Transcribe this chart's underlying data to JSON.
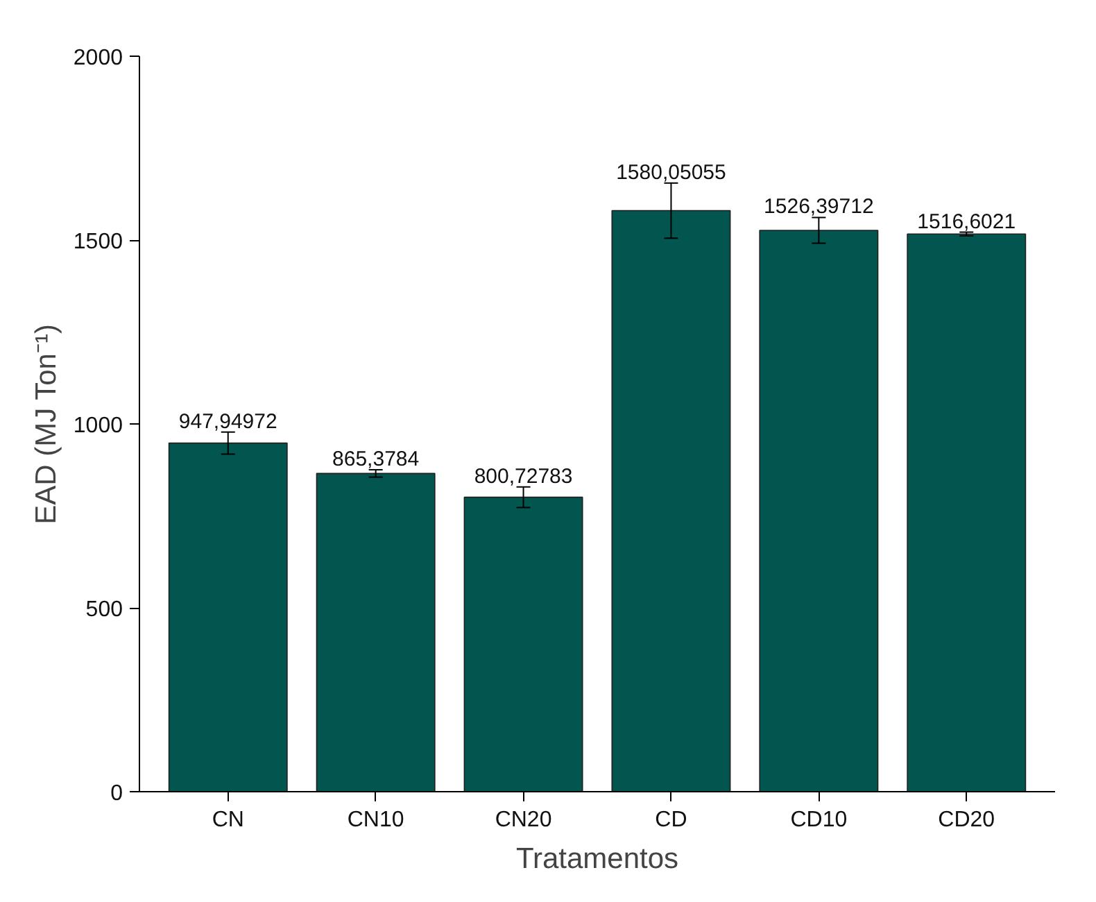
{
  "chart_data": {
    "type": "bar",
    "xlabel": "Tratamentos",
    "ylabel": "EAD (MJ Ton⁻¹)",
    "categories": [
      "CN",
      "CN10",
      "CN20",
      "CD",
      "CD10",
      "CD20"
    ],
    "values": [
      947.94972,
      865.3784,
      800.72783,
      1580.05055,
      1526.39712,
      1516.6021
    ],
    "value_labels": [
      "947,94972",
      "865,3784",
      "800,72783",
      "1580,05055",
      "1526,39712",
      "1516,6021"
    ],
    "errors": [
      30,
      10,
      28,
      75,
      35,
      5
    ],
    "color": "#03564f",
    "ylim": [
      0,
      2000
    ],
    "yticks": [
      0,
      500,
      1000,
      1500,
      2000
    ],
    "grid": false
  }
}
